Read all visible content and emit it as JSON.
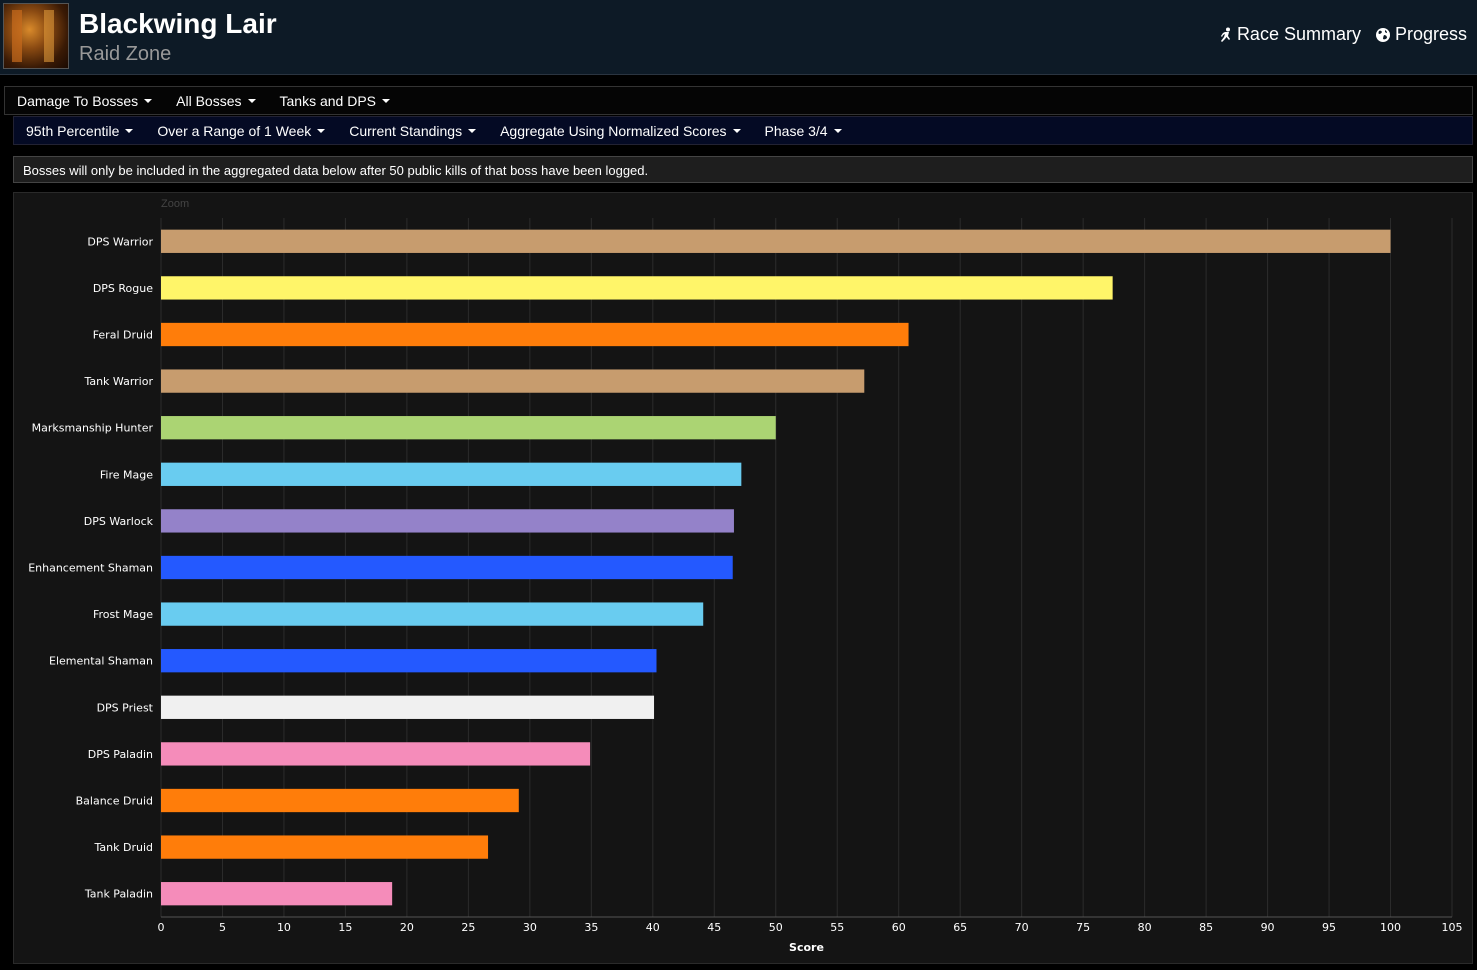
{
  "header": {
    "title": "Blackwing Lair",
    "subtitle": "Raid Zone",
    "links": [
      {
        "label": "Race Summary",
        "icon": "running-person-icon"
      },
      {
        "label": "Progress",
        "icon": "globe-icon"
      }
    ]
  },
  "nav_primary": [
    {
      "label": "Damage To Bosses"
    },
    {
      "label": "All Bosses"
    },
    {
      "label": "Tanks and DPS"
    }
  ],
  "nav_secondary": [
    {
      "label": "95th Percentile"
    },
    {
      "label": "Over a Range of 1 Week"
    },
    {
      "label": "Current Standings"
    },
    {
      "label": "Aggregate Using Normalized Scores"
    },
    {
      "label": "Phase 3/4"
    }
  ],
  "notice": "Bosses will only be included in the aggregated data below after 50 public kills of that boss have been logged.",
  "zoom_label": "Zoom",
  "colors": {
    "background": "#141414",
    "header_bg": "#0d1a26",
    "nav_secondary_bg": "#040a24",
    "gridline": "#2c2c2c"
  },
  "chart_data": {
    "type": "bar",
    "orientation": "horizontal",
    "xlabel": "Score",
    "xlim": [
      0,
      105
    ],
    "xticks": [
      0,
      5,
      10,
      15,
      20,
      25,
      30,
      35,
      40,
      45,
      50,
      55,
      60,
      65,
      70,
      75,
      80,
      85,
      90,
      95,
      100,
      105
    ],
    "grid": true,
    "categories": [
      "DPS Warrior",
      "DPS Rogue",
      "Feral Druid",
      "Tank Warrior",
      "Marksmanship Hunter",
      "Fire Mage",
      "DPS Warlock",
      "Enhancement Shaman",
      "Frost Mage",
      "Elemental Shaman",
      "DPS Priest",
      "DPS Paladin",
      "Balance Druid",
      "Tank Druid",
      "Tank Paladin"
    ],
    "values": [
      100,
      77.4,
      60.8,
      57.2,
      50,
      47.2,
      46.6,
      46.5,
      44.1,
      40.3,
      40.1,
      34.9,
      29.1,
      26.6,
      18.8
    ],
    "bar_colors": [
      "#c79c6e",
      "#fff569",
      "#ff7d0a",
      "#c79c6e",
      "#abd473",
      "#69ccf0",
      "#9482c9",
      "#2459ff",
      "#69ccf0",
      "#2459ff",
      "#f0f0f0",
      "#f58cba",
      "#ff7d0a",
      "#ff7d0a",
      "#f58cba"
    ]
  }
}
